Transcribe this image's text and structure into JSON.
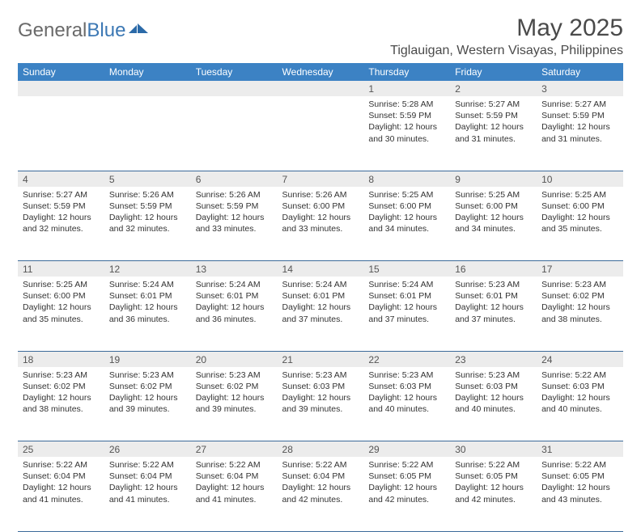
{
  "logo": {
    "gray": "General",
    "blue": "Blue"
  },
  "title": "May 2025",
  "location": "Tiglauigan, Western Visayas, Philippines",
  "colors": {
    "header_bg": "#3c82c4",
    "header_text": "#ffffff",
    "daynum_bg": "#ececec",
    "row_divider": "#3c6a9a",
    "logo_gray": "#6a6a6a",
    "logo_blue": "#3c78b4"
  },
  "weekdays": [
    "Sunday",
    "Monday",
    "Tuesday",
    "Wednesday",
    "Thursday",
    "Friday",
    "Saturday"
  ],
  "weeks": [
    [
      null,
      null,
      null,
      null,
      {
        "n": "1",
        "sr": "5:28 AM",
        "ss": "5:59 PM",
        "dl": "12 hours and 30 minutes."
      },
      {
        "n": "2",
        "sr": "5:27 AM",
        "ss": "5:59 PM",
        "dl": "12 hours and 31 minutes."
      },
      {
        "n": "3",
        "sr": "5:27 AM",
        "ss": "5:59 PM",
        "dl": "12 hours and 31 minutes."
      }
    ],
    [
      {
        "n": "4",
        "sr": "5:27 AM",
        "ss": "5:59 PM",
        "dl": "12 hours and 32 minutes."
      },
      {
        "n": "5",
        "sr": "5:26 AM",
        "ss": "5:59 PM",
        "dl": "12 hours and 32 minutes."
      },
      {
        "n": "6",
        "sr": "5:26 AM",
        "ss": "5:59 PM",
        "dl": "12 hours and 33 minutes."
      },
      {
        "n": "7",
        "sr": "5:26 AM",
        "ss": "6:00 PM",
        "dl": "12 hours and 33 minutes."
      },
      {
        "n": "8",
        "sr": "5:25 AM",
        "ss": "6:00 PM",
        "dl": "12 hours and 34 minutes."
      },
      {
        "n": "9",
        "sr": "5:25 AM",
        "ss": "6:00 PM",
        "dl": "12 hours and 34 minutes."
      },
      {
        "n": "10",
        "sr": "5:25 AM",
        "ss": "6:00 PM",
        "dl": "12 hours and 35 minutes."
      }
    ],
    [
      {
        "n": "11",
        "sr": "5:25 AM",
        "ss": "6:00 PM",
        "dl": "12 hours and 35 minutes."
      },
      {
        "n": "12",
        "sr": "5:24 AM",
        "ss": "6:01 PM",
        "dl": "12 hours and 36 minutes."
      },
      {
        "n": "13",
        "sr": "5:24 AM",
        "ss": "6:01 PM",
        "dl": "12 hours and 36 minutes."
      },
      {
        "n": "14",
        "sr": "5:24 AM",
        "ss": "6:01 PM",
        "dl": "12 hours and 37 minutes."
      },
      {
        "n": "15",
        "sr": "5:24 AM",
        "ss": "6:01 PM",
        "dl": "12 hours and 37 minutes."
      },
      {
        "n": "16",
        "sr": "5:23 AM",
        "ss": "6:01 PM",
        "dl": "12 hours and 37 minutes."
      },
      {
        "n": "17",
        "sr": "5:23 AM",
        "ss": "6:02 PM",
        "dl": "12 hours and 38 minutes."
      }
    ],
    [
      {
        "n": "18",
        "sr": "5:23 AM",
        "ss": "6:02 PM",
        "dl": "12 hours and 38 minutes."
      },
      {
        "n": "19",
        "sr": "5:23 AM",
        "ss": "6:02 PM",
        "dl": "12 hours and 39 minutes."
      },
      {
        "n": "20",
        "sr": "5:23 AM",
        "ss": "6:02 PM",
        "dl": "12 hours and 39 minutes."
      },
      {
        "n": "21",
        "sr": "5:23 AM",
        "ss": "6:03 PM",
        "dl": "12 hours and 39 minutes."
      },
      {
        "n": "22",
        "sr": "5:23 AM",
        "ss": "6:03 PM",
        "dl": "12 hours and 40 minutes."
      },
      {
        "n": "23",
        "sr": "5:23 AM",
        "ss": "6:03 PM",
        "dl": "12 hours and 40 minutes."
      },
      {
        "n": "24",
        "sr": "5:22 AM",
        "ss": "6:03 PM",
        "dl": "12 hours and 40 minutes."
      }
    ],
    [
      {
        "n": "25",
        "sr": "5:22 AM",
        "ss": "6:04 PM",
        "dl": "12 hours and 41 minutes."
      },
      {
        "n": "26",
        "sr": "5:22 AM",
        "ss": "6:04 PM",
        "dl": "12 hours and 41 minutes."
      },
      {
        "n": "27",
        "sr": "5:22 AM",
        "ss": "6:04 PM",
        "dl": "12 hours and 41 minutes."
      },
      {
        "n": "28",
        "sr": "5:22 AM",
        "ss": "6:04 PM",
        "dl": "12 hours and 42 minutes."
      },
      {
        "n": "29",
        "sr": "5:22 AM",
        "ss": "6:05 PM",
        "dl": "12 hours and 42 minutes."
      },
      {
        "n": "30",
        "sr": "5:22 AM",
        "ss": "6:05 PM",
        "dl": "12 hours and 42 minutes."
      },
      {
        "n": "31",
        "sr": "5:22 AM",
        "ss": "6:05 PM",
        "dl": "12 hours and 43 minutes."
      }
    ]
  ],
  "labels": {
    "sunrise": "Sunrise: ",
    "sunset": "Sunset: ",
    "daylight": "Daylight: "
  }
}
